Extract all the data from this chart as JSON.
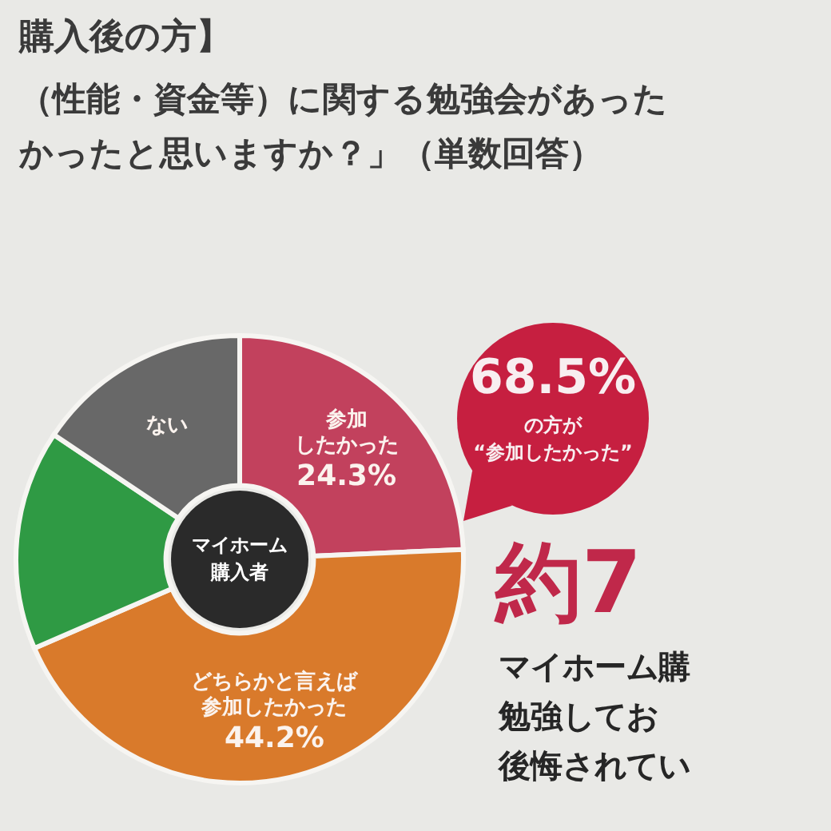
{
  "chart_data": {
    "type": "donut",
    "title": "購入後の方】",
    "subtitle": "（性能・資金等）に関する勉強会があったかったと思いますか？」（単数回答）",
    "categories": [
      "参加したかった",
      "どちらかと言えば参加したかった",
      null,
      "ない"
    ],
    "values": [
      24.3,
      44.2,
      15.9,
      15.6
    ],
    "colors": [
      "#c2415d",
      "#d97a2b",
      "#2f9a44",
      "#686868"
    ],
    "value_labels": [
      "24.3%",
      "44.2%",
      null,
      null
    ],
    "annotations": [
      "マイホーム購入者",
      "68.5%",
      "の方が“参加したかった”",
      "約7",
      "マイホーム購",
      "勉強してお",
      "後悔されてい"
    ]
  }
}
